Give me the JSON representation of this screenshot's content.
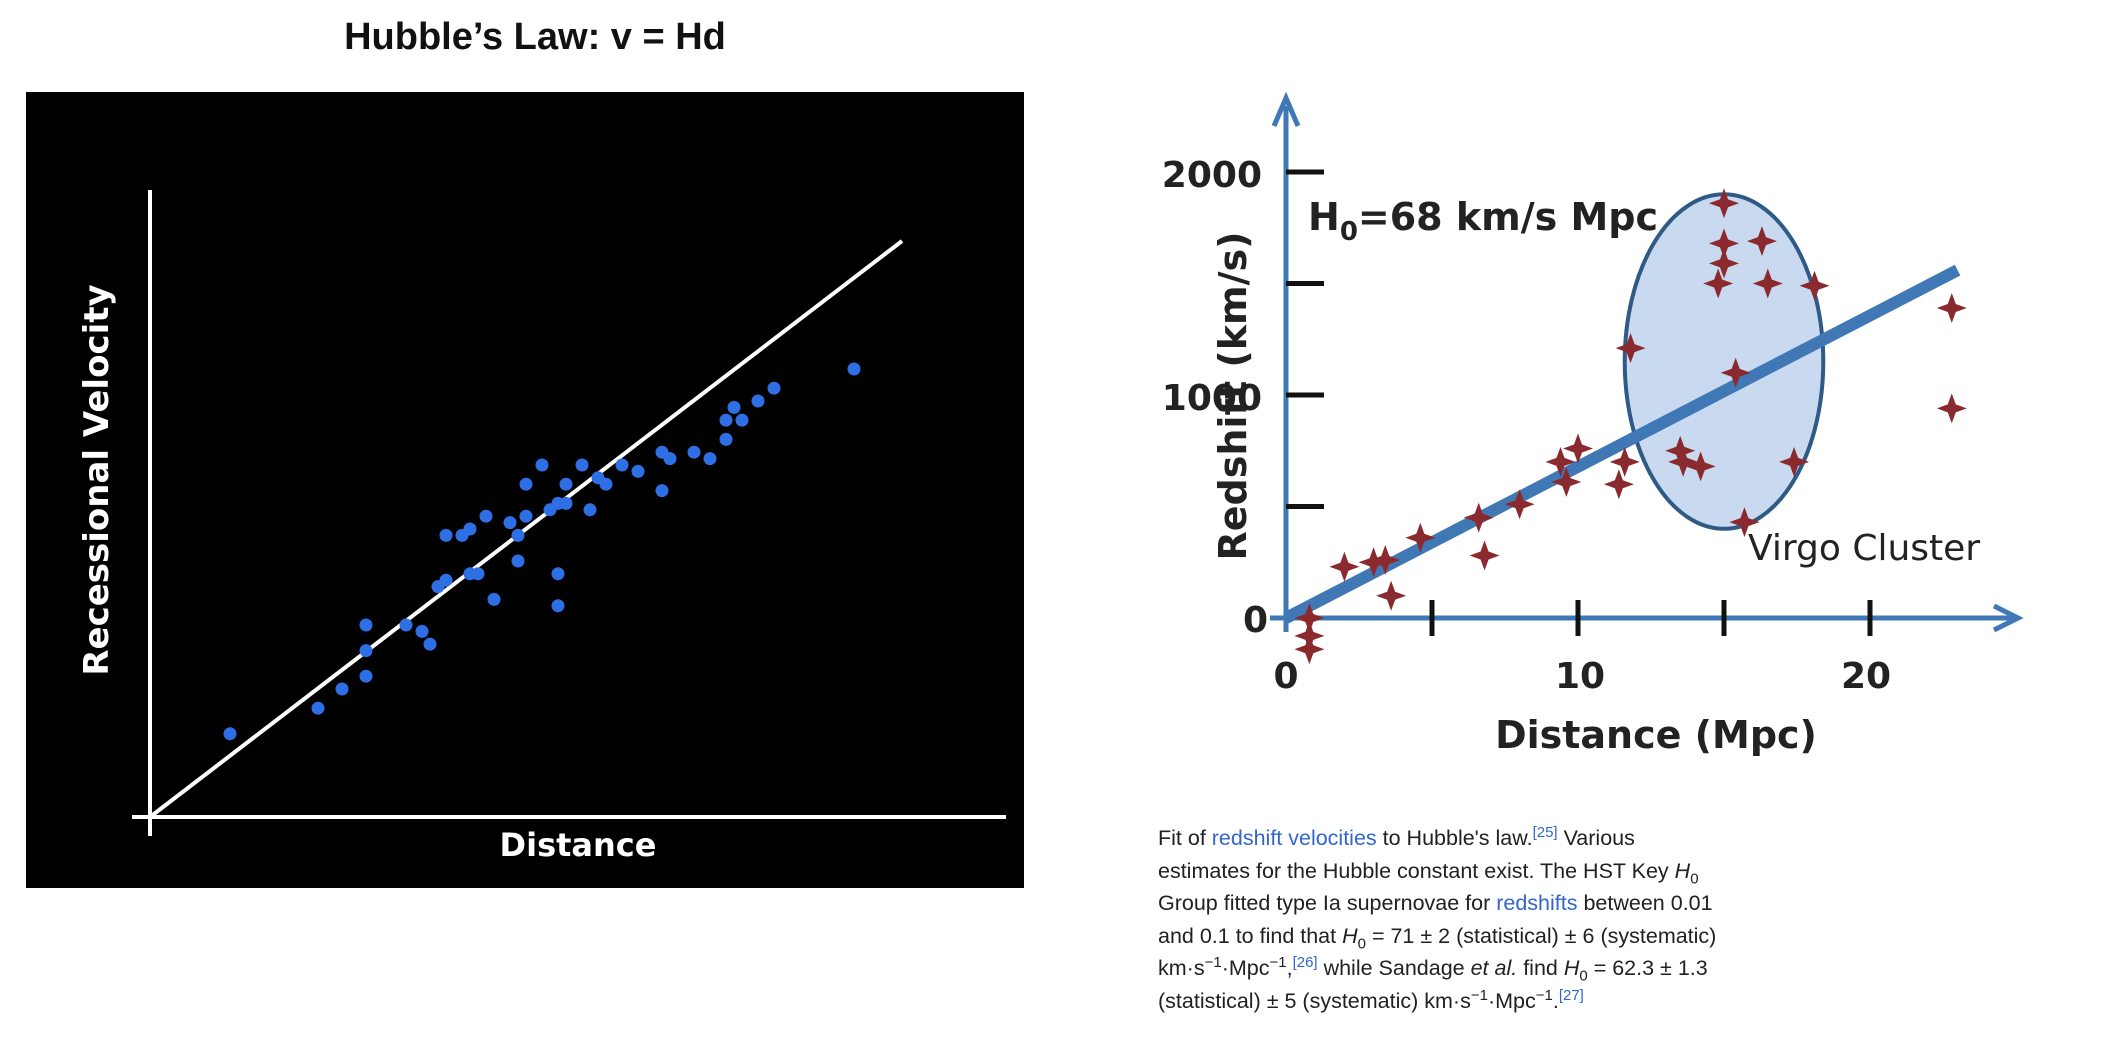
{
  "left_title": "Hubble’s Law: v = Hd",
  "chart_data": [
    {
      "type": "scatter",
      "title": "Hubble’s Law: v = Hd",
      "xlabel": "Distance",
      "ylabel": "Recessional Velocity",
      "xlim": [
        0,
        100
      ],
      "ylim": [
        0,
        100
      ],
      "grid": false,
      "colors": {
        "background": "#000000",
        "points": "#2e6fe6",
        "axes": "#ffffff",
        "fit_line": "#ffffff"
      },
      "fit_line": {
        "from": [
          0,
          0
        ],
        "to": [
          94,
          90
        ]
      },
      "points": [
        [
          10,
          13
        ],
        [
          21,
          17
        ],
        [
          24,
          20
        ],
        [
          27,
          22
        ],
        [
          27,
          26
        ],
        [
          27,
          30
        ],
        [
          32,
          30
        ],
        [
          34,
          29
        ],
        [
          35,
          27
        ],
        [
          36,
          36
        ],
        [
          37,
          37
        ],
        [
          37,
          44
        ],
        [
          39,
          44
        ],
        [
          40,
          45
        ],
        [
          40,
          38
        ],
        [
          41,
          38
        ],
        [
          42,
          47
        ],
        [
          43,
          34
        ],
        [
          45,
          46
        ],
        [
          46,
          40
        ],
        [
          46,
          44
        ],
        [
          47,
          47
        ],
        [
          47,
          52
        ],
        [
          49,
          55
        ],
        [
          50,
          48
        ],
        [
          51,
          49
        ],
        [
          51,
          33
        ],
        [
          51,
          38
        ],
        [
          52,
          49
        ],
        [
          52,
          52
        ],
        [
          54,
          55
        ],
        [
          55,
          48
        ],
        [
          56,
          53
        ],
        [
          57,
          52
        ],
        [
          59,
          55
        ],
        [
          61,
          54
        ],
        [
          64,
          57
        ],
        [
          64,
          51
        ],
        [
          65,
          56
        ],
        [
          68,
          57
        ],
        [
          70,
          56
        ],
        [
          72,
          62
        ],
        [
          72,
          59
        ],
        [
          73,
          64
        ],
        [
          74,
          62
        ],
        [
          76,
          65
        ],
        [
          78,
          67
        ],
        [
          88,
          70
        ]
      ]
    },
    {
      "type": "scatter",
      "xlabel": "Distance (Mpc)",
      "ylabel": "Redshift (km/s)",
      "xlim": [
        0,
        25
      ],
      "ylim": [
        -200,
        2200
      ],
      "x_ticks": [
        0,
        10,
        20
      ],
      "y_ticks": [
        0,
        1000,
        2000
      ],
      "grid": false,
      "colors": {
        "axes": "#3f78b5",
        "points": "#8b2a2e",
        "fit_line": "#3f78b5",
        "ellipse_fill": "#c9daf0"
      },
      "annotations": [
        "H0=68 km/s Mpc",
        "Virgo Cluster"
      ],
      "fit_line": {
        "from": [
          0,
          0
        ],
        "to": [
          23,
          1560
        ]
      },
      "virgo_ellipse": {
        "center": [
          15,
          1150
        ],
        "rx": 3.4,
        "ry": 750
      },
      "points": [
        [
          0.8,
          0
        ],
        [
          0.8,
          -80
        ],
        [
          0.8,
          -140
        ],
        [
          2,
          230
        ],
        [
          3,
          250
        ],
        [
          3.4,
          260
        ],
        [
          3.6,
          100
        ],
        [
          4.6,
          360
        ],
        [
          6.6,
          450
        ],
        [
          6.8,
          280
        ],
        [
          8,
          510
        ],
        [
          9.4,
          700
        ],
        [
          9.6,
          610
        ],
        [
          10,
          760
        ],
        [
          11.4,
          600
        ],
        [
          11.6,
          700
        ],
        [
          11.8,
          1210
        ],
        [
          13.5,
          750
        ],
        [
          13.6,
          700
        ],
        [
          14.2,
          680
        ],
        [
          15,
          1860
        ],
        [
          15,
          1680
        ],
        [
          15,
          1590
        ],
        [
          14.8,
          1500
        ],
        [
          15.4,
          1100
        ],
        [
          15.7,
          430
        ],
        [
          16.3,
          1690
        ],
        [
          16.5,
          1500
        ],
        [
          18.1,
          1490
        ],
        [
          17.4,
          700
        ],
        [
          22.8,
          1390
        ],
        [
          22.8,
          940
        ]
      ]
    }
  ],
  "right_chart": {
    "y_tick_labels": [
      "2000",
      "1000",
      "0"
    ],
    "x_tick_labels": [
      "0",
      "10",
      "20"
    ],
    "xlabel": "Distance (Mpc)",
    "ylabel": "Redshift (km/s)",
    "h0_prefix": "H",
    "h0_sub": "0",
    "h0_rest": "=68 km/s Mpc",
    "virgo_label": "Virgo Cluster"
  },
  "caption": {
    "t1": "Fit of ",
    "link1": "redshift velocities",
    "t2": " to Hubble's law.",
    "ref1": "[25]",
    "t3": " Various estimates for the Hubble constant exist. The HST Key ",
    "h": "H",
    "zero": "0",
    "t4": " Group fitted type Ia supernovae for ",
    "link2": "redshifts",
    "t5": " between 0.01 and 0.1 to find that ",
    "t6": " = 71 ± 2 (statistical) ± 6 (systematic) km·s",
    "minus1": "−1",
    "t7": "·Mpc",
    "t8": ",",
    "ref2": "[26]",
    "t9": " while Sandage ",
    "etal": "et al.",
    "t10": " find ",
    "t11": " = 62.3 ± 1.3 (statistical) ± 5 (systematic) km·s",
    "t12": ".",
    "ref3": "[27]"
  }
}
